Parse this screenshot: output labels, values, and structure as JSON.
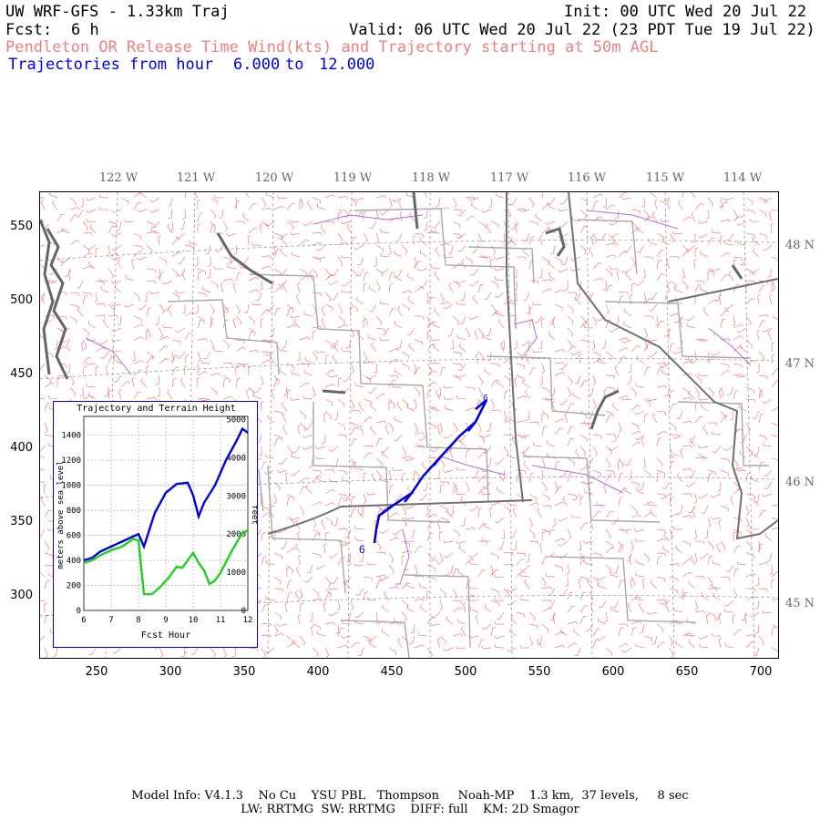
{
  "header": {
    "title": "UW WRF-GFS - 1.33km Traj",
    "init": "Init: 00 UTC Wed 20 Jul 22",
    "fcst_label": "Fcst:",
    "fcst_value": "6 h",
    "valid": "Valid: 06 UTC Wed 20 Jul 22 (23 PDT Tue 19 Jul 22)",
    "subtitle_wind": "Pendleton OR Release Time Wind(kts) and Trajectory starting at 50m AGL",
    "subtitle_traj_prefix": "Trajectories from hour",
    "traj_from": "6.000",
    "traj_to_word": "to",
    "traj_to": "12.000"
  },
  "map": {
    "lon_labels": [
      "122 W",
      "121 W",
      "120 W",
      "119 W",
      "118 W",
      "117 W",
      "116 W",
      "115 W",
      "114 W"
    ],
    "lat_labels": [
      "48 N",
      "47 N",
      "46 N",
      "45 N"
    ],
    "y_ticks": [
      "550",
      "500",
      "450",
      "400",
      "350",
      "300"
    ],
    "x_ticks": [
      "250",
      "300",
      "350",
      "400",
      "450",
      "500",
      "550",
      "600",
      "650",
      "700"
    ],
    "trajectory_start_label": "6",
    "colors": {
      "wind_barbs": "#ef7f7f",
      "trajectory": "#0000d8",
      "coast": "#606060",
      "borders": "#a0a0a0",
      "lakes": "#b060d0"
    }
  },
  "inset": {
    "title": "Trajectory and Terrain Height",
    "ylabel_left": "meters above sea level",
    "ylabel_right": "feet",
    "xlabel": "Fcst Hour",
    "left_ticks": [
      "1400",
      "1200",
      "1000",
      "800",
      "600",
      "400",
      "200",
      "0"
    ],
    "right_ticks": [
      "5000",
      "4000",
      "3000",
      "2000",
      "1000",
      "0"
    ],
    "x_ticks": [
      "6",
      "7",
      "8",
      "9",
      "10",
      "11",
      "12"
    ]
  },
  "chart_data": {
    "type": "line",
    "title": "Trajectory and Terrain Height",
    "xlabel": "Fcst Hour",
    "ylabel": "meters above sea level",
    "xlim": [
      6,
      12
    ],
    "ylim": [
      0,
      1550
    ],
    "series": [
      {
        "name": "",
        "color": "#0000d8",
        "x": [
          6.0,
          6.3,
          6.6,
          7.0,
          7.4,
          7.8,
          8.0,
          8.2,
          8.6,
          9.0,
          9.4,
          9.8,
          10.0,
          10.2,
          10.4,
          10.8,
          11.2,
          11.6,
          11.8,
          12.0
        ],
        "y": [
          400,
          420,
          470,
          510,
          550,
          590,
          610,
          510,
          780,
          940,
          1010,
          1020,
          920,
          750,
          860,
          1000,
          1200,
          1360,
          1450,
          1420
        ]
      },
      {
        "name": "",
        "color": "#20d020",
        "x": [
          6.0,
          6.3,
          6.6,
          7.0,
          7.4,
          7.8,
          8.0,
          8.2,
          8.5,
          8.8,
          9.1,
          9.4,
          9.6,
          9.8,
          10.0,
          10.2,
          10.4,
          10.6,
          10.8,
          11.0,
          11.4,
          11.8,
          12.0
        ],
        "y": [
          380,
          400,
          440,
          480,
          510,
          570,
          560,
          130,
          130,
          190,
          260,
          350,
          340,
          400,
          460,
          380,
          320,
          210,
          240,
          300,
          470,
          620,
          640
        ]
      }
    ]
  },
  "footer": {
    "line1": "Model Info: V4.1.3    No Cu    YSU PBL   Thompson     Noah-MP    1.3 km,  37 levels,     8 sec",
    "line2": "LW: RRTMG  SW: RRTMG    DIFF: full    KM: 2D Smagor"
  }
}
